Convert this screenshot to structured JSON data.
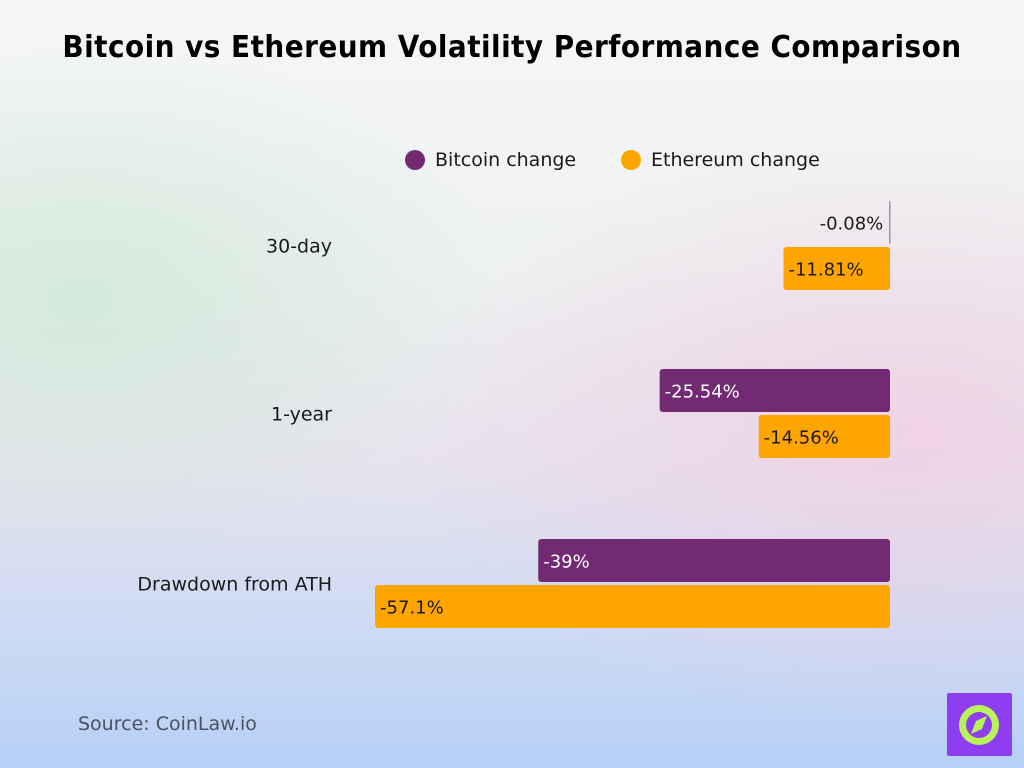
{
  "title": "Bitcoin vs Ethereum Volatility Performance Comparison",
  "source": "Source: CoinLaw.io",
  "colors": {
    "bitcoin": "#722a73",
    "ethereum": "#ffa500",
    "logo_bg": "#8f3df0",
    "logo_accent": "#b8f35a"
  },
  "icons": {
    "logo": "compass-logo-icon"
  },
  "chart_data": {
    "type": "bar",
    "orientation": "horizontal",
    "categories": [
      "30-day",
      "1-year",
      "Drawdown from ATH"
    ],
    "series": [
      {
        "name": "Bitcoin change",
        "values": [
          -0.08,
          -25.54,
          -39
        ],
        "labels": [
          "-0.08%",
          "-25.54%",
          "-39%"
        ]
      },
      {
        "name": "Ethereum change",
        "values": [
          -11.81,
          -14.56,
          -57.1
        ],
        "labels": [
          "-11.81%",
          "-14.56%",
          "-57.1%"
        ]
      }
    ],
    "xlim": [
      -57.1,
      0
    ],
    "legend_position": "top",
    "grid": false
  }
}
